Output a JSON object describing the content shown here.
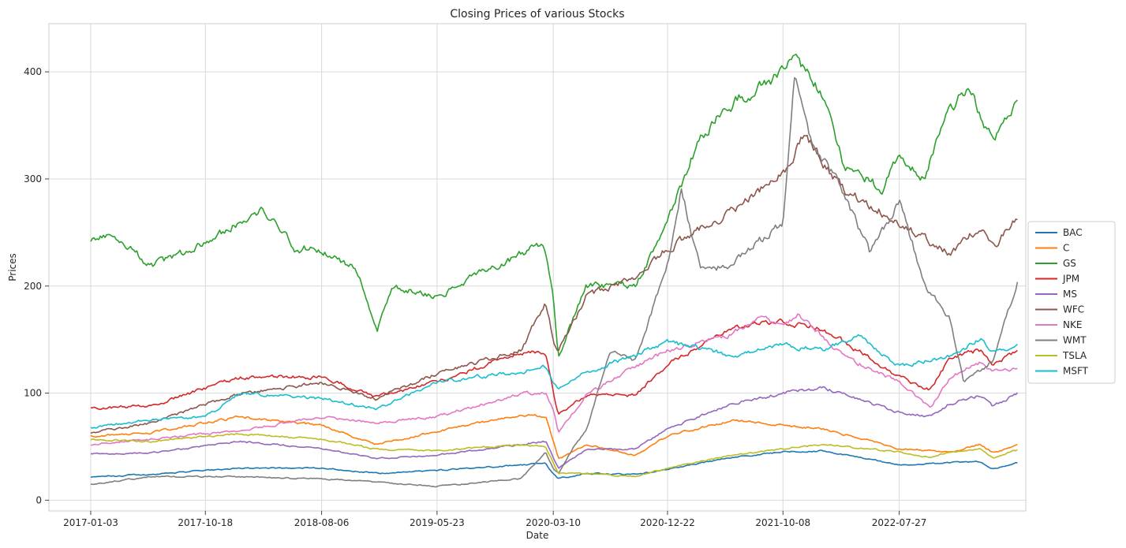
{
  "chart_data": {
    "type": "line",
    "title": "Closing Prices of various Stocks",
    "xlabel": "Date",
    "ylabel": "Prices",
    "x_range": [
      "2016-09-20",
      "2023-06-10"
    ],
    "ylim": [
      -10,
      445
    ],
    "x_ticks": [
      "2017-01-03",
      "2017-10-18",
      "2018-08-06",
      "2019-05-23",
      "2020-03-10",
      "2020-12-22",
      "2021-10-08",
      "2022-07-27"
    ],
    "y_ticks": [
      0,
      100,
      200,
      300,
      400
    ],
    "grid": true,
    "legend_position": "center-right",
    "series": [
      {
        "name": "BAC",
        "color": "#1f77b4",
        "points": [
          [
            "2017-01-03",
            22
          ],
          [
            "2017-06-01",
            24
          ],
          [
            "2018-01-15",
            30
          ],
          [
            "2018-08-06",
            30
          ],
          [
            "2019-01-01",
            25
          ],
          [
            "2019-05-23",
            28
          ],
          [
            "2019-12-20",
            33
          ],
          [
            "2020-02-20",
            35
          ],
          [
            "2020-03-10",
            24
          ],
          [
            "2020-03-23",
            20
          ],
          [
            "2020-06-01",
            25
          ],
          [
            "2020-10-01",
            24
          ],
          [
            "2020-12-22",
            29
          ],
          [
            "2021-06-01",
            40
          ],
          [
            "2021-10-08",
            45
          ],
          [
            "2022-01-15",
            46
          ],
          [
            "2022-07-27",
            33
          ],
          [
            "2022-12-01",
            35
          ],
          [
            "2023-02-15",
            36
          ],
          [
            "2023-03-20",
            29
          ],
          [
            "2023-05-20",
            35
          ]
        ]
      },
      {
        "name": "C",
        "color": "#ff7f0e",
        "points": [
          [
            "2017-01-03",
            60
          ],
          [
            "2017-06-01",
            63
          ],
          [
            "2018-01-15",
            78
          ],
          [
            "2018-08-06",
            70
          ],
          [
            "2018-12-20",
            52
          ],
          [
            "2019-05-23",
            64
          ],
          [
            "2019-12-20",
            80
          ],
          [
            "2020-02-20",
            78
          ],
          [
            "2020-03-10",
            55
          ],
          [
            "2020-03-23",
            38
          ],
          [
            "2020-06-01",
            52
          ],
          [
            "2020-10-01",
            42
          ],
          [
            "2020-12-22",
            60
          ],
          [
            "2021-06-01",
            75
          ],
          [
            "2021-10-08",
            70
          ],
          [
            "2022-01-15",
            67
          ],
          [
            "2022-07-27",
            48
          ],
          [
            "2022-12-01",
            45
          ],
          [
            "2023-02-15",
            52
          ],
          [
            "2023-03-20",
            44
          ],
          [
            "2023-05-20",
            51
          ]
        ]
      },
      {
        "name": "GS",
        "color": "#2ca02c",
        "points": [
          [
            "2017-01-03",
            242
          ],
          [
            "2017-03-01",
            250
          ],
          [
            "2017-06-01",
            218
          ],
          [
            "2017-10-18",
            240
          ],
          [
            "2018-02-01",
            265
          ],
          [
            "2018-03-15",
            270
          ],
          [
            "2018-06-01",
            235
          ],
          [
            "2018-08-06",
            235
          ],
          [
            "2018-11-01",
            215
          ],
          [
            "2018-12-24",
            160
          ],
          [
            "2019-02-01",
            200
          ],
          [
            "2019-05-23",
            190
          ],
          [
            "2019-09-01",
            210
          ],
          [
            "2019-12-20",
            230
          ],
          [
            "2020-02-15",
            240
          ],
          [
            "2020-03-10",
            190
          ],
          [
            "2020-03-23",
            135
          ],
          [
            "2020-06-01",
            200
          ],
          [
            "2020-10-01",
            200
          ],
          [
            "2020-12-22",
            260
          ],
          [
            "2021-03-15",
            340
          ],
          [
            "2021-06-01",
            370
          ],
          [
            "2021-10-08",
            400
          ],
          [
            "2021-11-05",
            420
          ],
          [
            "2022-01-15",
            375
          ],
          [
            "2022-03-07",
            315
          ],
          [
            "2022-06-15",
            290
          ],
          [
            "2022-07-27",
            320
          ],
          [
            "2022-10-01",
            300
          ],
          [
            "2022-11-15",
            355
          ],
          [
            "2023-01-15",
            385
          ],
          [
            "2023-03-20",
            335
          ],
          [
            "2023-05-20",
            370
          ]
        ]
      },
      {
        "name": "JPM",
        "color": "#d62728",
        "points": [
          [
            "2017-01-03",
            86
          ],
          [
            "2017-06-01",
            88
          ],
          [
            "2018-01-15",
            115
          ],
          [
            "2018-08-06",
            115
          ],
          [
            "2018-12-20",
            97
          ],
          [
            "2019-05-23",
            110
          ],
          [
            "2019-12-20",
            138
          ],
          [
            "2020-02-20",
            137
          ],
          [
            "2020-03-10",
            100
          ],
          [
            "2020-03-23",
            80
          ],
          [
            "2020-06-01",
            98
          ],
          [
            "2020-10-01",
            98
          ],
          [
            "2020-12-22",
            127
          ],
          [
            "2021-06-01",
            160
          ],
          [
            "2021-10-08",
            167
          ],
          [
            "2022-01-15",
            160
          ],
          [
            "2022-07-27",
            115
          ],
          [
            "2022-10-13",
            103
          ],
          [
            "2022-12-01",
            133
          ],
          [
            "2023-02-15",
            140
          ],
          [
            "2023-03-20",
            125
          ],
          [
            "2023-05-20",
            140
          ]
        ]
      },
      {
        "name": "MS",
        "color": "#9467bd",
        "points": [
          [
            "2017-01-03",
            43
          ],
          [
            "2017-06-01",
            44
          ],
          [
            "2018-01-15",
            55
          ],
          [
            "2018-08-06",
            48
          ],
          [
            "2018-12-20",
            39
          ],
          [
            "2019-05-23",
            42
          ],
          [
            "2019-12-20",
            52
          ],
          [
            "2020-02-20",
            55
          ],
          [
            "2020-03-10",
            40
          ],
          [
            "2020-03-23",
            30
          ],
          [
            "2020-06-01",
            47
          ],
          [
            "2020-10-01",
            48
          ],
          [
            "2020-12-22",
            67
          ],
          [
            "2021-06-01",
            90
          ],
          [
            "2021-10-08",
            100
          ],
          [
            "2022-01-15",
            105
          ],
          [
            "2022-07-27",
            82
          ],
          [
            "2022-10-13",
            78
          ],
          [
            "2022-12-01",
            90
          ],
          [
            "2023-02-15",
            98
          ],
          [
            "2023-03-20",
            87
          ],
          [
            "2023-05-20",
            100
          ]
        ]
      },
      {
        "name": "WFC",
        "color": "#8c564b",
        "points": [
          [
            "2017-01-03",
            63
          ],
          [
            "2017-06-01",
            72
          ],
          [
            "2018-01-15",
            100
          ],
          [
            "2018-08-06",
            110
          ],
          [
            "2018-12-20",
            95
          ],
          [
            "2019-05-23",
            118
          ],
          [
            "2019-12-20",
            140
          ],
          [
            "2020-02-20",
            185
          ],
          [
            "2020-03-10",
            150
          ],
          [
            "2020-03-23",
            140
          ],
          [
            "2020-06-01",
            190
          ],
          [
            "2020-10-01",
            208
          ],
          [
            "2020-12-22",
            235
          ],
          [
            "2021-06-01",
            270
          ],
          [
            "2021-10-08",
            305
          ],
          [
            "2021-12-01",
            340
          ],
          [
            "2022-03-07",
            290
          ],
          [
            "2022-07-27",
            260
          ],
          [
            "2022-12-01",
            230
          ],
          [
            "2023-02-15",
            255
          ],
          [
            "2023-03-20",
            235
          ],
          [
            "2023-05-20",
            265
          ]
        ]
      },
      {
        "name": "NKE",
        "color": "#e377c2",
        "points": [
          [
            "2017-01-03",
            52
          ],
          [
            "2017-06-01",
            57
          ],
          [
            "2018-01-15",
            65
          ],
          [
            "2018-08-06",
            78
          ],
          [
            "2018-12-20",
            72
          ],
          [
            "2019-05-23",
            78
          ],
          [
            "2019-12-20",
            100
          ],
          [
            "2020-02-20",
            100
          ],
          [
            "2020-03-10",
            85
          ],
          [
            "2020-03-23",
            63
          ],
          [
            "2020-06-01",
            98
          ],
          [
            "2020-10-01",
            125
          ],
          [
            "2020-12-22",
            140
          ],
          [
            "2021-06-01",
            155
          ],
          [
            "2021-08-15",
            170
          ],
          [
            "2021-10-08",
            162
          ],
          [
            "2021-11-15",
            175
          ],
          [
            "2022-03-07",
            135
          ],
          [
            "2022-07-27",
            110
          ],
          [
            "2022-10-13",
            86
          ],
          [
            "2022-12-01",
            115
          ],
          [
            "2023-02-15",
            128
          ],
          [
            "2023-03-20",
            120
          ],
          [
            "2023-05-20",
            123
          ]
        ]
      },
      {
        "name": "WMT",
        "color": "#7f7f7f",
        "points": [
          [
            "2017-01-03",
            15
          ],
          [
            "2017-06-01",
            22
          ],
          [
            "2018-01-15",
            22
          ],
          [
            "2018-08-06",
            20
          ],
          [
            "2018-12-20",
            17
          ],
          [
            "2019-05-23",
            13
          ],
          [
            "2019-12-20",
            20
          ],
          [
            "2020-02-20",
            45
          ],
          [
            "2020-03-10",
            30
          ],
          [
            "2020-03-23",
            25
          ],
          [
            "2020-05-01",
            50
          ],
          [
            "2020-06-01",
            65
          ],
          [
            "2020-08-01",
            140
          ],
          [
            "2020-10-01",
            130
          ],
          [
            "2020-12-22",
            220
          ],
          [
            "2021-01-26",
            290
          ],
          [
            "2021-03-15",
            215
          ],
          [
            "2021-06-01",
            220
          ],
          [
            "2021-10-08",
            260
          ],
          [
            "2021-11-05",
            400
          ],
          [
            "2021-12-15",
            335
          ],
          [
            "2022-03-07",
            290
          ],
          [
            "2022-05-15",
            230
          ],
          [
            "2022-07-27",
            280
          ],
          [
            "2022-10-01",
            200
          ],
          [
            "2022-12-01",
            170
          ],
          [
            "2023-01-05",
            110
          ],
          [
            "2023-03-20",
            130
          ],
          [
            "2023-05-20",
            205
          ]
        ]
      },
      {
        "name": "TSLA",
        "color": "#bcbd22",
        "points": [
          [
            "2017-01-03",
            56
          ],
          [
            "2017-06-01",
            55
          ],
          [
            "2018-01-15",
            62
          ],
          [
            "2018-08-06",
            57
          ],
          [
            "2018-12-20",
            48
          ],
          [
            "2019-05-23",
            46
          ],
          [
            "2019-12-20",
            52
          ],
          [
            "2020-02-20",
            50
          ],
          [
            "2020-03-10",
            35
          ],
          [
            "2020-03-23",
            25
          ],
          [
            "2020-06-01",
            25
          ],
          [
            "2020-10-01",
            22
          ],
          [
            "2020-12-22",
            30
          ],
          [
            "2021-06-01",
            42
          ],
          [
            "2021-10-08",
            48
          ],
          [
            "2022-01-15",
            52
          ],
          [
            "2022-07-27",
            45
          ],
          [
            "2022-10-13",
            40
          ],
          [
            "2022-12-01",
            45
          ],
          [
            "2023-02-15",
            48
          ],
          [
            "2023-03-20",
            40
          ],
          [
            "2023-05-20",
            47
          ]
        ]
      },
      {
        "name": "MSFT",
        "color": "#17becf",
        "points": [
          [
            "2017-01-03",
            68
          ],
          [
            "2017-06-01",
            75
          ],
          [
            "2017-10-18",
            78
          ],
          [
            "2018-01-15",
            100
          ],
          [
            "2018-08-06",
            95
          ],
          [
            "2018-12-20",
            85
          ],
          [
            "2019-05-23",
            110
          ],
          [
            "2019-12-20",
            120
          ],
          [
            "2020-02-20",
            125
          ],
          [
            "2020-03-10",
            110
          ],
          [
            "2020-03-23",
            105
          ],
          [
            "2020-06-01",
            120
          ],
          [
            "2020-10-01",
            135
          ],
          [
            "2020-12-22",
            148
          ],
          [
            "2021-06-01",
            135
          ],
          [
            "2021-10-08",
            145
          ],
          [
            "2022-01-15",
            140
          ],
          [
            "2022-04-15",
            155
          ],
          [
            "2022-07-27",
            125
          ],
          [
            "2022-12-01",
            135
          ],
          [
            "2023-02-15",
            150
          ],
          [
            "2023-03-20",
            140
          ],
          [
            "2023-05-20",
            145
          ]
        ]
      }
    ]
  }
}
